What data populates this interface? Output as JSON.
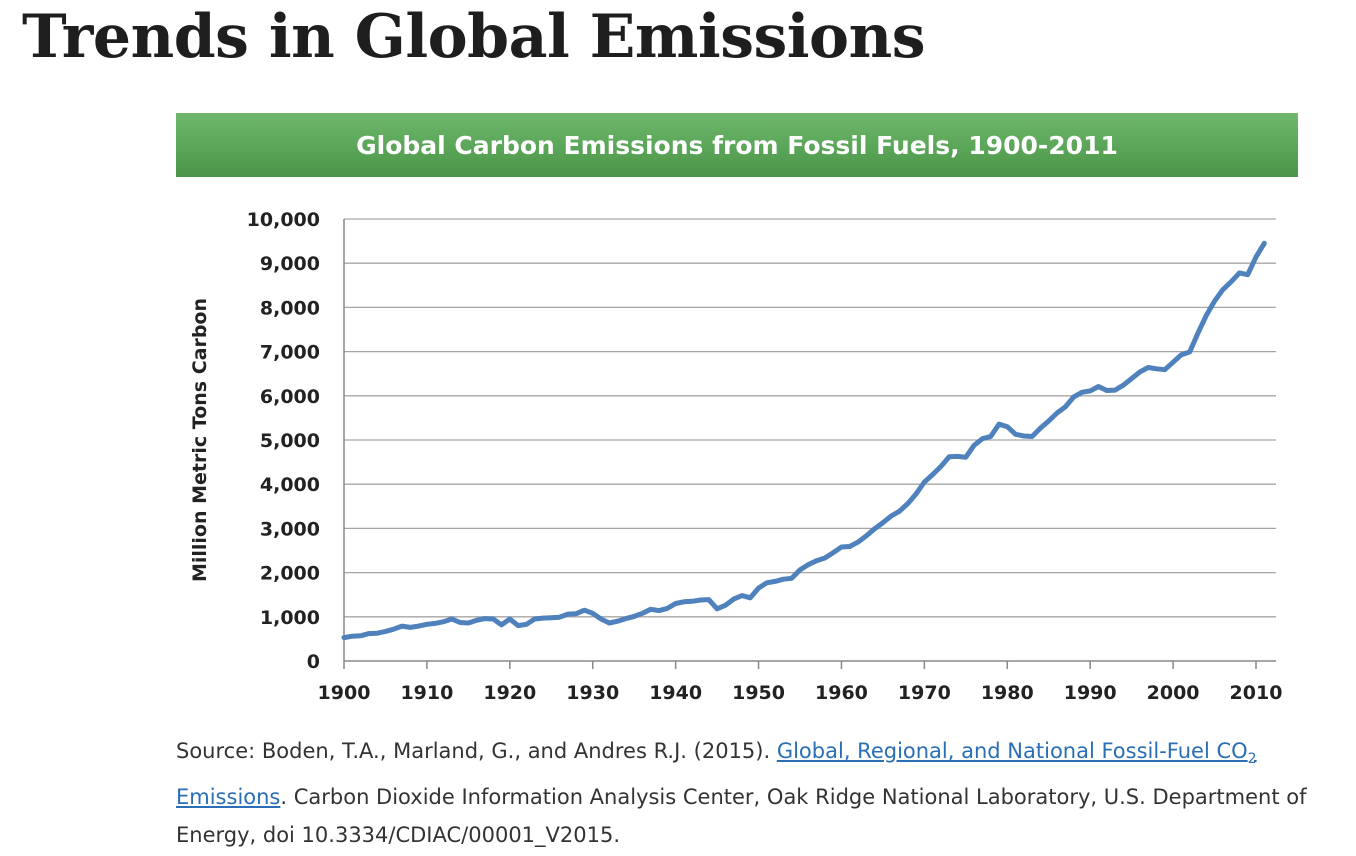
{
  "page": {
    "title": "Trends in Global Emissions"
  },
  "chart_banner": {
    "title": "Global Carbon Emissions from Fossil Fuels, 1900-2011"
  },
  "source": {
    "prefix": "Source: Boden, T.A., Marland, G., and Andres R.J. (2015). ",
    "link_text_line1": "Global, Regional, and National Fossil-Fuel CO",
    "link_subscript": "2",
    "link_text_line2": "Emissions",
    "suffix": ". Carbon Dioxide Information Analysis Center, Oak Ridge National Laboratory, U.S. Department of Energy, doi 10.3334/CDIAC/00001_V2015."
  },
  "colors": {
    "line": "#4f81bd",
    "banner": "#5aa558",
    "grid": "#a6a6a6",
    "link": "#2a6fb5"
  },
  "chart_data": {
    "type": "line",
    "title": "Global Carbon Emissions from Fossil Fuels, 1900-2011",
    "xlabel": "",
    "ylabel": "Million Metric Tons Carbon",
    "xlim": [
      1900,
      2011
    ],
    "ylim": [
      0,
      10000
    ],
    "x_ticks": [
      1900,
      1910,
      1920,
      1930,
      1940,
      1950,
      1960,
      1970,
      1980,
      1990,
      2000,
      2010
    ],
    "y_ticks": [
      0,
      1000,
      2000,
      3000,
      4000,
      5000,
      6000,
      7000,
      8000,
      9000,
      10000
    ],
    "x_tick_labels": [
      "1900",
      "1910",
      "1920",
      "1930",
      "1940",
      "1950",
      "1960",
      "1970",
      "1980",
      "1990",
      "2000",
      "2010"
    ],
    "y_tick_labels": [
      "0",
      "1,000",
      "2,000",
      "3,000",
      "4,000",
      "5,000",
      "6,000",
      "7,000",
      "8,000",
      "9,000",
      "10,000"
    ],
    "grid": "horizontal",
    "legend": "none",
    "series": [
      {
        "x": [
          1900,
          1901,
          1902,
          1903,
          1904,
          1905,
          1906,
          1907,
          1908,
          1909,
          1910,
          1911,
          1912,
          1913,
          1914,
          1915,
          1916,
          1917,
          1918,
          1919,
          1920,
          1921,
          1922,
          1923,
          1924,
          1925,
          1926,
          1927,
          1928,
          1929,
          1930,
          1931,
          1932,
          1933,
          1934,
          1935,
          1936,
          1937,
          1938,
          1939,
          1940,
          1941,
          1942,
          1943,
          1944,
          1945,
          1946,
          1947,
          1948,
          1949,
          1950,
          1951,
          1952,
          1953,
          1954,
          1955,
          1956,
          1957,
          1958,
          1959,
          1960,
          1961,
          1962,
          1963,
          1964,
          1965,
          1966,
          1967,
          1968,
          1969,
          1970,
          1971,
          1972,
          1973,
          1974,
          1975,
          1976,
          1977,
          1978,
          1979,
          1980,
          1981,
          1982,
          1983,
          1984,
          1985,
          1986,
          1987,
          1988,
          1989,
          1990,
          1991,
          1992,
          1993,
          1994,
          1995,
          1996,
          1997,
          1998,
          1999,
          2000,
          2001,
          2002,
          2003,
          2004,
          2005,
          2006,
          2007,
          2008,
          2009,
          2010,
          2011
        ],
        "values": [
          530,
          560,
          570,
          620,
          630,
          670,
          720,
          790,
          760,
          790,
          830,
          850,
          890,
          950,
          870,
          860,
          920,
          960,
          950,
          820,
          950,
          800,
          830,
          950,
          970,
          980,
          990,
          1060,
          1070,
          1150,
          1080,
          950,
          860,
          900,
          960,
          1010,
          1080,
          1170,
          1140,
          1190,
          1300,
          1340,
          1350,
          1380,
          1390,
          1180,
          1260,
          1400,
          1480,
          1430,
          1650,
          1770,
          1800,
          1850,
          1870,
          2060,
          2180,
          2270,
          2330,
          2450,
          2580,
          2590,
          2690,
          2830,
          2990,
          3130,
          3280,
          3390,
          3560,
          3780,
          4050,
          4220,
          4400,
          4620,
          4630,
          4610,
          4880,
          5030,
          5080,
          5360,
          5300,
          5130,
          5090,
          5080,
          5270,
          5430,
          5610,
          5750,
          5970,
          6080,
          6110,
          6210,
          6120,
          6130,
          6240,
          6390,
          6540,
          6640,
          6610,
          6590,
          6760,
          6930,
          6990,
          7420,
          7820,
          8140,
          8400,
          8580,
          8780,
          8740,
          9140,
          9450
        ]
      }
    ]
  }
}
